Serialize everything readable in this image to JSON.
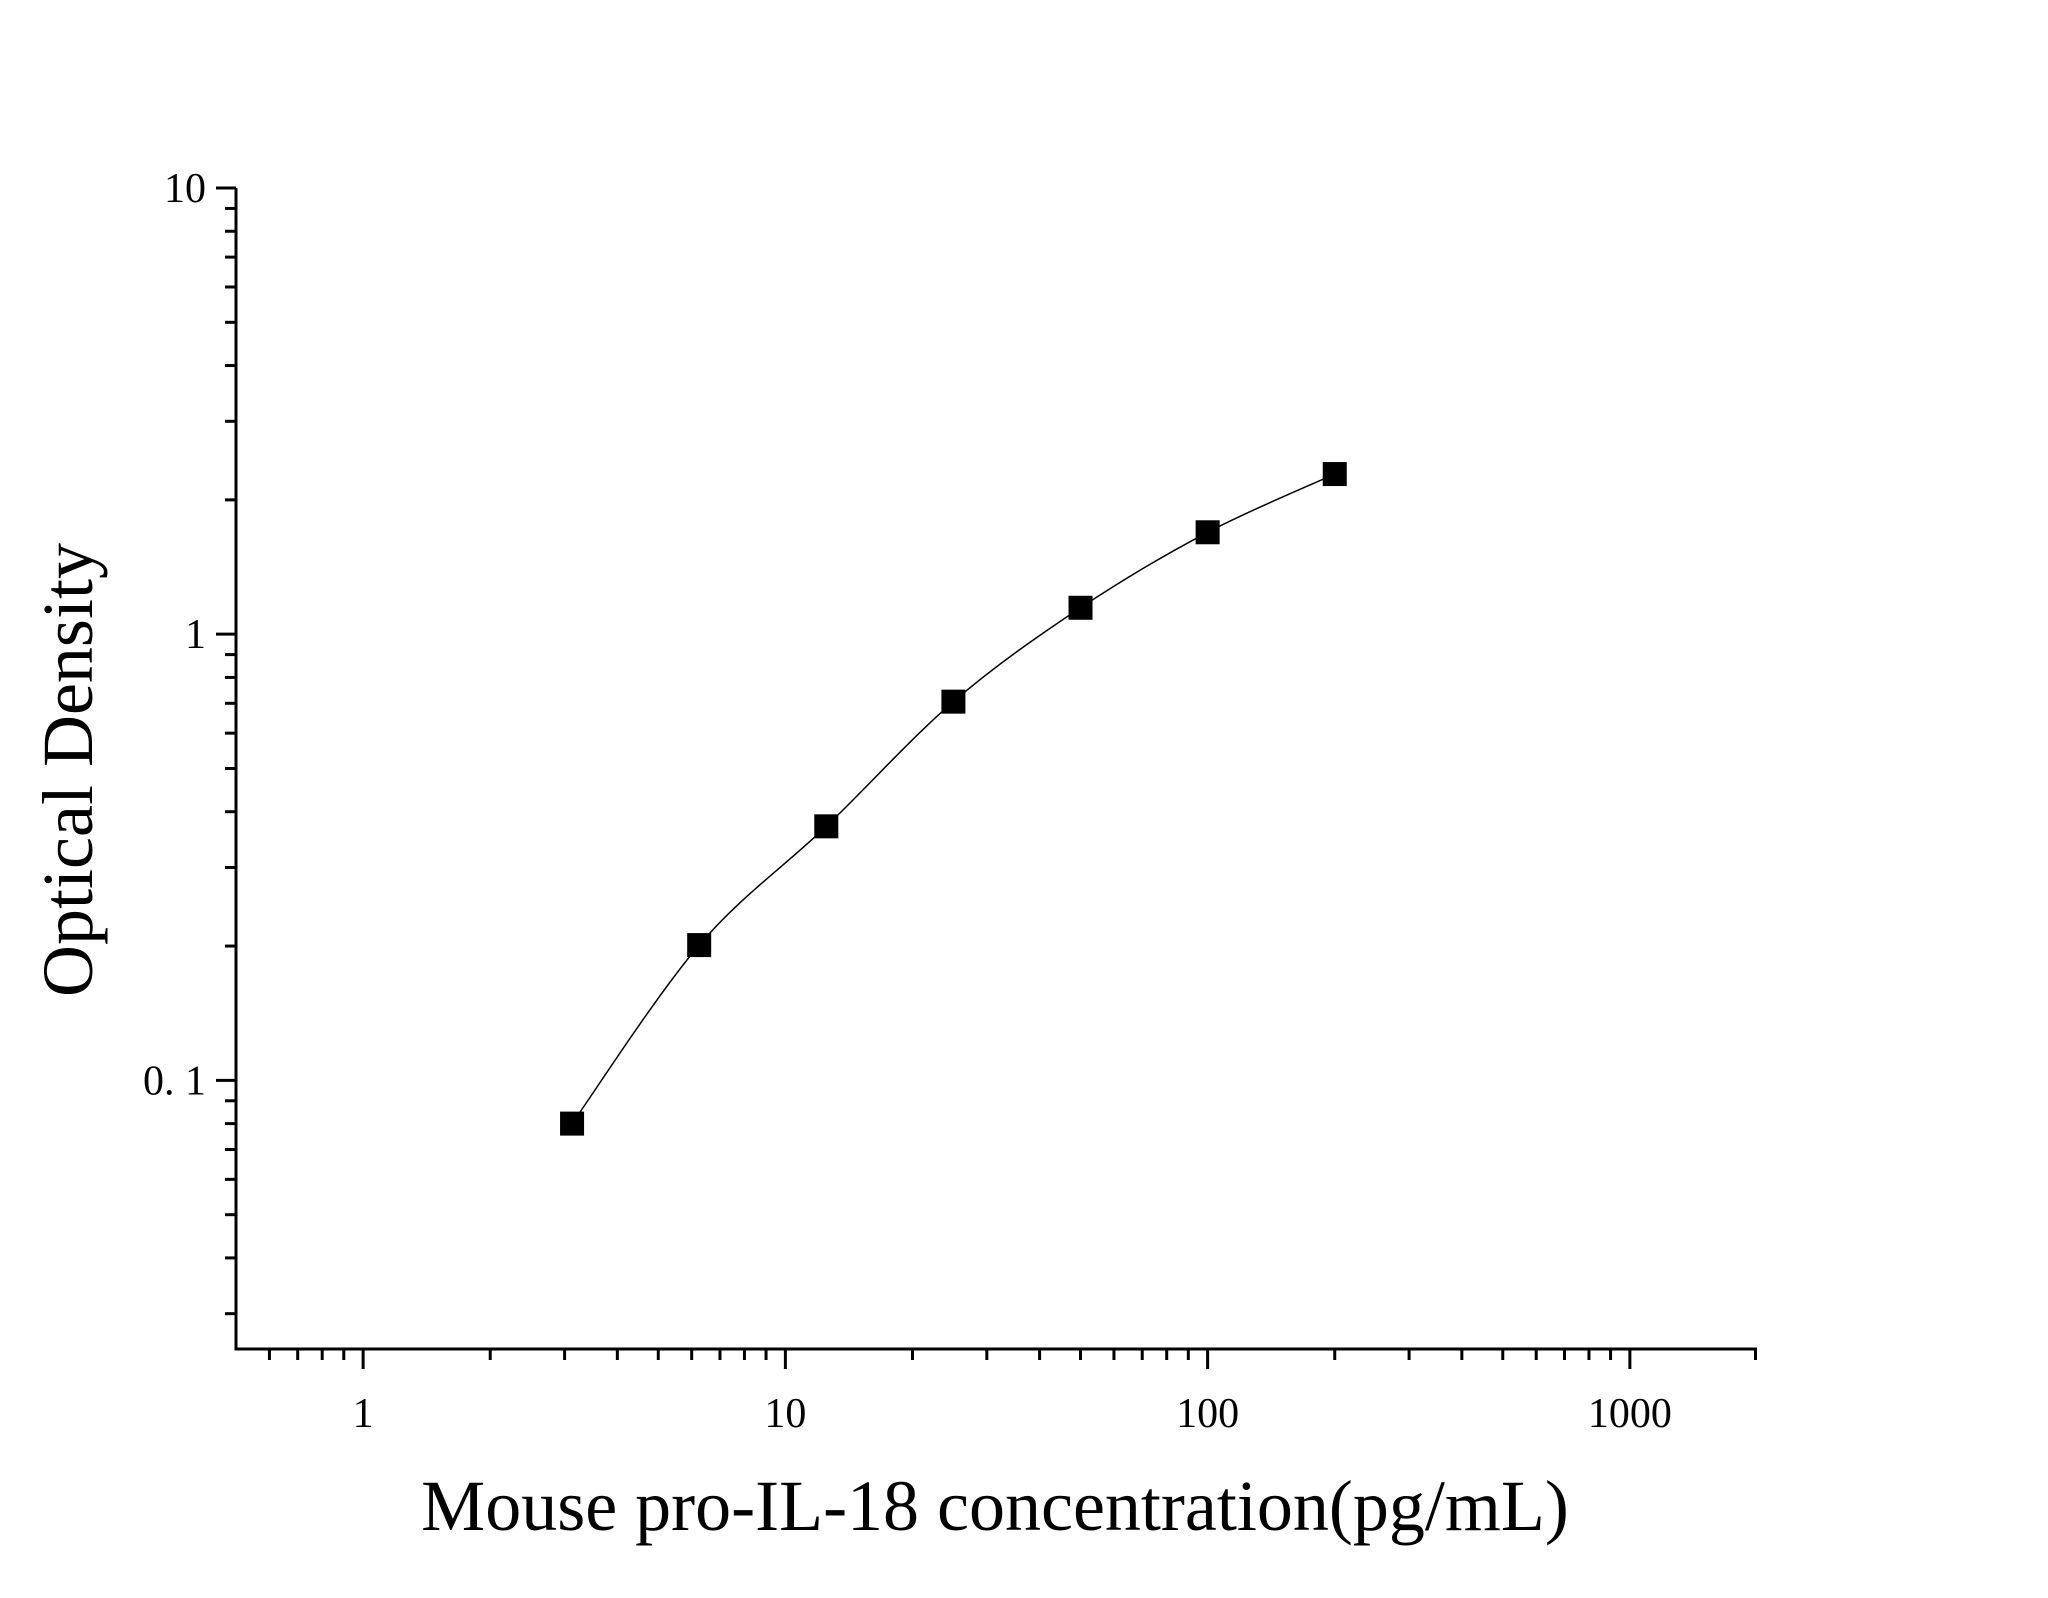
{
  "chart_data": {
    "type": "scatter",
    "x_label": "Mouse pro-IL-18 concentration(pg/mL)",
    "y_label": "Optical Density",
    "x": [
      3.125,
      6.25,
      12.5,
      25,
      50,
      100,
      200
    ],
    "series": [
      {
        "color": "#000000",
        "values": [
          0.08,
          0.201,
          0.371,
          0.706,
          1.146,
          1.692,
          2.285
        ]
      }
    ],
    "xlog": true,
    "ylog": true,
    "xlim": [
      0.5,
      2000
    ],
    "ylim": [
      0.025,
      10
    ],
    "xticks": [
      1,
      10,
      100,
      1000
    ],
    "yticks": [
      {
        "value": 0.1,
        "label": "0. 1"
      },
      1,
      10
    ],
    "xminorticks": [
      0.6,
      0.7,
      0.8,
      0.9,
      2,
      3,
      4,
      5,
      6,
      7,
      8,
      9,
      20,
      30,
      40,
      50,
      60,
      70,
      80,
      90,
      200,
      300,
      400,
      500,
      600,
      700,
      800,
      900
    ],
    "yminorticks": [
      0.03,
      0.04,
      0.05,
      0.06,
      0.07,
      0.08,
      0.09,
      0.2,
      0.3,
      0.4,
      0.5,
      0.6,
      0.7,
      0.8,
      0.9,
      2,
      3,
      4,
      5,
      6,
      7,
      8,
      9
    ],
    "grid": false
  }
}
